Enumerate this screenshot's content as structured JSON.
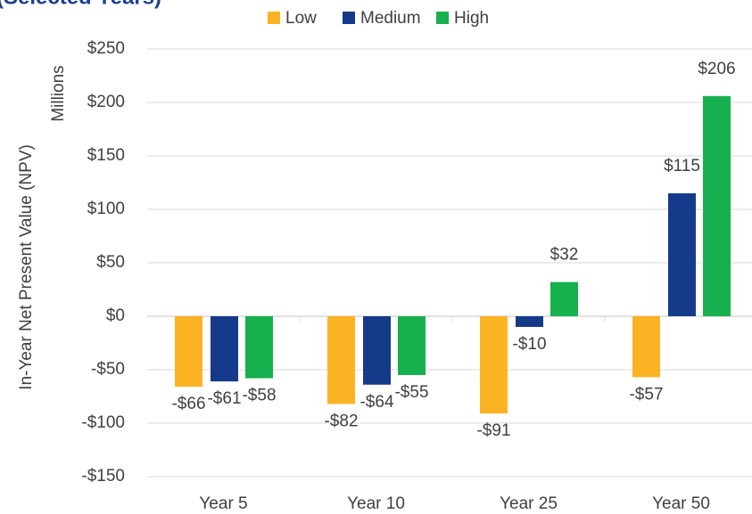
{
  "chart_data": {
    "type": "bar",
    "title": "(Selected Years)",
    "y_label": "In-Year Net Present Value (NPV)",
    "y_units": "Millions",
    "categories": [
      "Year 5",
      "Year 10",
      "Year 25",
      "Year 50"
    ],
    "series": [
      {
        "name": "Low",
        "color": "#fbb324",
        "values": [
          -66,
          -82,
          -91,
          -57
        ],
        "value_labels": [
          "-$66",
          "-$82",
          "-$91",
          "-$57"
        ]
      },
      {
        "name": "Medium",
        "color": "#163a8a",
        "values": [
          -61,
          -64,
          -10,
          115
        ],
        "value_labels": [
          "-$61",
          "-$64",
          "-$10",
          "$115"
        ]
      },
      {
        "name": "High",
        "color": "#17b04f",
        "values": [
          -58,
          -55,
          32,
          206
        ],
        "value_labels": [
          "-$58",
          "-$55",
          "$32",
          "$206"
        ]
      }
    ],
    "ylim": [
      -150,
      250
    ],
    "yticks": [
      {
        "value": -150,
        "label": "-$150"
      },
      {
        "value": -100,
        "label": "-$100"
      },
      {
        "value": -50,
        "label": "-$50"
      },
      {
        "value": 0,
        "label": "$0"
      },
      {
        "value": 50,
        "label": "$50"
      },
      {
        "value": 100,
        "label": "$100"
      },
      {
        "value": 150,
        "label": "$150"
      },
      {
        "value": 200,
        "label": "$200"
      },
      {
        "value": 250,
        "label": "$250"
      }
    ],
    "grid": true,
    "legend": "top"
  }
}
